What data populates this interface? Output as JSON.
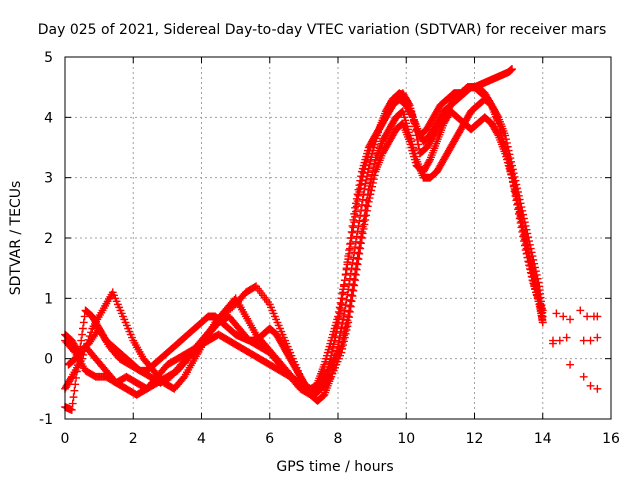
{
  "chart_data": {
    "type": "scatter",
    "title": "Day 025 of 2021, Sidereal Day-to-day VTEC variation (SDTVAR) for receiver mars",
    "xlabel": "GPS time / hours",
    "ylabel": "SDTVAR / TECUs",
    "xlim": [
      0,
      16
    ],
    "ylim": [
      -1,
      5
    ],
    "xticks": [
      "0",
      "2",
      "4",
      "6",
      "8",
      "10",
      "12",
      "14",
      "16"
    ],
    "yticks": [
      "-1",
      "0",
      "1",
      "2",
      "3",
      "4",
      "5"
    ],
    "grid": true,
    "marker": "+",
    "color": "#ff0000",
    "series": [
      {
        "x": [
          0.0,
          0.2,
          0.4,
          0.7,
          1.0,
          1.3,
          1.6,
          1.9,
          2.2,
          2.5,
          2.8,
          3.1,
          3.4,
          3.7,
          4.0,
          4.3,
          4.6,
          5.0,
          5.3,
          5.6,
          6.0,
          6.3,
          6.6,
          6.9,
          7.1,
          7.3,
          7.5,
          7.7,
          7.9,
          8.1,
          8.3,
          8.5,
          8.7,
          8.9,
          9.1,
          9.3,
          9.5,
          9.7,
          9.9,
          10.1,
          10.3,
          10.5,
          10.7,
          10.9,
          11.1,
          11.3,
          11.5,
          11.7,
          11.9,
          12.1,
          12.3,
          12.5,
          12.7,
          12.9,
          13.1,
          13.3,
          13.5,
          13.7,
          13.9,
          14.0
        ],
        "y": [
          0.4,
          0.3,
          0.1,
          0.25,
          0.5,
          0.2,
          0.0,
          -0.1,
          -0.2,
          -0.3,
          -0.4,
          -0.3,
          -0.1,
          0.1,
          0.3,
          0.5,
          0.7,
          0.9,
          1.1,
          1.2,
          0.9,
          0.5,
          0.1,
          -0.3,
          -0.5,
          -0.6,
          -0.5,
          -0.2,
          0.3,
          0.9,
          1.7,
          2.5,
          3.1,
          3.5,
          3.7,
          3.9,
          4.1,
          4.3,
          4.4,
          4.2,
          3.8,
          3.6,
          3.7,
          3.9,
          4.1,
          4.2,
          4.3,
          4.4,
          4.5,
          4.5,
          4.4,
          4.2,
          3.9,
          3.5,
          3.0,
          2.4,
          1.8,
          1.3,
          0.9,
          0.6
        ]
      },
      {
        "x": [
          0.0,
          0.2,
          0.5,
          0.8,
          1.1,
          1.4,
          1.7,
          2.0,
          2.3,
          2.6,
          2.9,
          3.2,
          3.5,
          3.8,
          4.1,
          4.4,
          4.7,
          5.0,
          5.3,
          5.6,
          5.9,
          6.2,
          6.5,
          6.8,
          7.0,
          7.2,
          7.4,
          7.6,
          7.8,
          8.0,
          8.2,
          8.4,
          8.6,
          8.8,
          9.0,
          9.2,
          9.4,
          9.6,
          9.8,
          10.0,
          10.2,
          10.4,
          10.6,
          10.8,
          11.0,
          11.2,
          11.4,
          11.6,
          11.8,
          12.0,
          12.2,
          12.4,
          12.6,
          12.8,
          13.0,
          13.2,
          13.4,
          13.6,
          13.8,
          14.0
        ],
        "y": [
          -0.5,
          -0.3,
          0.0,
          0.5,
          0.8,
          1.1,
          0.7,
          0.3,
          0.0,
          -0.2,
          -0.4,
          -0.5,
          -0.3,
          0.0,
          0.3,
          0.6,
          0.8,
          1.0,
          0.7,
          0.4,
          0.2,
          0.0,
          -0.2,
          -0.4,
          -0.5,
          -0.6,
          -0.4,
          -0.1,
          0.3,
          0.7,
          1.3,
          2.0,
          2.7,
          3.2,
          3.6,
          3.8,
          4.0,
          4.2,
          4.3,
          4.2,
          4.0,
          3.4,
          3.5,
          3.7,
          3.9,
          4.1,
          4.3,
          4.4,
          4.5,
          4.5,
          4.4,
          4.3,
          4.1,
          3.7,
          3.3,
          2.8,
          2.2,
          1.6,
          1.1,
          0.8
        ]
      },
      {
        "x": [
          0.1,
          0.3,
          0.6,
          0.9,
          1.2,
          1.5,
          1.8,
          2.1,
          2.4,
          2.7,
          3.0,
          3.3,
          3.6,
          3.9,
          4.2,
          4.5,
          4.8,
          5.1,
          5.4,
          5.7,
          6.0,
          6.3,
          6.6,
          6.9,
          7.2,
          7.5,
          7.8,
          8.1,
          8.3,
          8.5,
          8.7,
          8.9,
          9.1,
          9.3,
          9.5,
          9.7,
          9.9,
          10.1,
          10.3,
          10.5,
          10.7,
          10.9,
          11.1,
          11.3,
          11.5,
          11.7,
          11.9,
          12.1,
          12.3,
          12.5,
          12.7,
          12.9,
          13.1,
          13.3,
          13.5,
          13.7,
          13.9,
          14.0
        ],
        "y": [
          -0.1,
          0.0,
          0.2,
          0.0,
          -0.2,
          -0.4,
          -0.3,
          -0.4,
          -0.5,
          -0.3,
          -0.1,
          0.0,
          0.1,
          0.2,
          0.3,
          0.4,
          0.3,
          0.2,
          0.1,
          0.0,
          -0.1,
          -0.2,
          -0.3,
          -0.4,
          -0.5,
          -0.4,
          -0.1,
          0.2,
          0.7,
          1.4,
          2.1,
          2.8,
          3.3,
          3.6,
          3.8,
          4.0,
          4.1,
          3.7,
          3.3,
          3.0,
          3.0,
          3.1,
          3.3,
          3.5,
          3.7,
          3.9,
          4.1,
          4.2,
          4.3,
          4.2,
          4.0,
          3.7,
          3.2,
          2.7,
          2.2,
          1.7,
          1.2,
          0.7
        ]
      },
      {
        "x": [
          0.0,
          0.3,
          0.6,
          0.9,
          1.2,
          1.5,
          1.8,
          2.1,
          2.4,
          2.7,
          3.0,
          3.3,
          3.6,
          3.9,
          4.2,
          4.5,
          4.8,
          5.1,
          5.4,
          5.7,
          6.0,
          6.3,
          6.6,
          6.9,
          7.2,
          7.5,
          7.8,
          8.1,
          8.3,
          8.5,
          8.7,
          8.9,
          9.1,
          9.3,
          9.5,
          9.7,
          9.9,
          10.1,
          10.3,
          10.5,
          10.7,
          10.9,
          11.1,
          11.3,
          11.5,
          11.7,
          11.9,
          12.1,
          12.3,
          12.5,
          12.7,
          12.9,
          13.1,
          13.3,
          13.5,
          13.7,
          13.9,
          14.0
        ],
        "y": [
          0.3,
          0.1,
          -0.2,
          -0.3,
          -0.3,
          -0.4,
          -0.5,
          -0.6,
          -0.5,
          -0.4,
          -0.3,
          -0.2,
          0.0,
          0.2,
          0.4,
          0.6,
          0.7,
          0.5,
          0.3,
          0.2,
          0.1,
          -0.1,
          -0.3,
          -0.5,
          -0.6,
          -0.5,
          -0.3,
          0.1,
          0.6,
          1.3,
          2.0,
          2.6,
          3.1,
          3.4,
          3.6,
          3.8,
          3.9,
          3.6,
          3.2,
          3.1,
          3.3,
          3.6,
          3.9,
          4.1,
          4.0,
          3.9,
          3.8,
          3.9,
          4.0,
          3.9,
          3.7,
          3.4,
          3.0,
          2.5,
          2.0,
          1.5,
          1.0,
          0.6
        ]
      },
      {
        "x": [
          0.0,
          0.2,
          0.4,
          0.6,
          0.8,
          1.0,
          1.2,
          1.4,
          1.6,
          1.8,
          2.0,
          2.2,
          2.4,
          2.6,
          2.8,
          3.0,
          3.2,
          3.4,
          3.6,
          3.8,
          4.0,
          4.2,
          4.4,
          4.6,
          4.8,
          5.0,
          5.2,
          5.4,
          5.6,
          5.8,
          6.0,
          6.2,
          6.4,
          6.6,
          6.8,
          7.0,
          7.2,
          7.4,
          7.6,
          7.8,
          8.0,
          8.2,
          8.4,
          8.6,
          8.8,
          9.0,
          9.2,
          9.4,
          9.6,
          9.8,
          10.0,
          10.2,
          10.4,
          10.6,
          10.8,
          11.0,
          11.2,
          11.4,
          11.6,
          11.8,
          12.0,
          12.2,
          12.4,
          12.6,
          12.8,
          13.0,
          13.1
        ],
        "y": [
          -0.8,
          -0.85,
          0.0,
          0.8,
          0.7,
          0.5,
          0.3,
          0.2,
          0.1,
          0.0,
          -0.1,
          -0.2,
          -0.2,
          -0.1,
          0.0,
          0.1,
          0.2,
          0.3,
          0.4,
          0.5,
          0.6,
          0.7,
          0.7,
          0.6,
          0.5,
          0.4,
          0.35,
          0.3,
          0.3,
          0.4,
          0.5,
          0.4,
          0.2,
          0.0,
          -0.2,
          -0.4,
          -0.6,
          -0.7,
          -0.6,
          -0.3,
          0.2,
          0.8,
          1.5,
          2.2,
          2.9,
          3.4,
          3.8,
          4.1,
          4.3,
          4.4,
          4.3,
          4.0,
          3.7,
          3.8,
          4.0,
          4.2,
          4.3,
          4.4,
          4.4,
          4.5,
          4.5,
          4.55,
          4.6,
          4.65,
          4.7,
          4.75,
          4.8
        ]
      },
      {
        "x": [
          14.3,
          14.4,
          14.6,
          14.8,
          15.1,
          15.3,
          15.5,
          15.6
        ],
        "y": [
          0.3,
          0.75,
          0.7,
          0.65,
          0.8,
          0.7,
          0.7,
          0.7
        ]
      },
      {
        "x": [
          14.3,
          14.5,
          14.7,
          15.2,
          15.4,
          15.6
        ],
        "y": [
          0.25,
          0.3,
          0.35,
          0.3,
          0.3,
          0.35
        ]
      },
      {
        "x": [
          14.8,
          15.2,
          15.4,
          15.6
        ],
        "y": [
          -0.1,
          -0.3,
          -0.45,
          -0.5
        ]
      }
    ]
  }
}
